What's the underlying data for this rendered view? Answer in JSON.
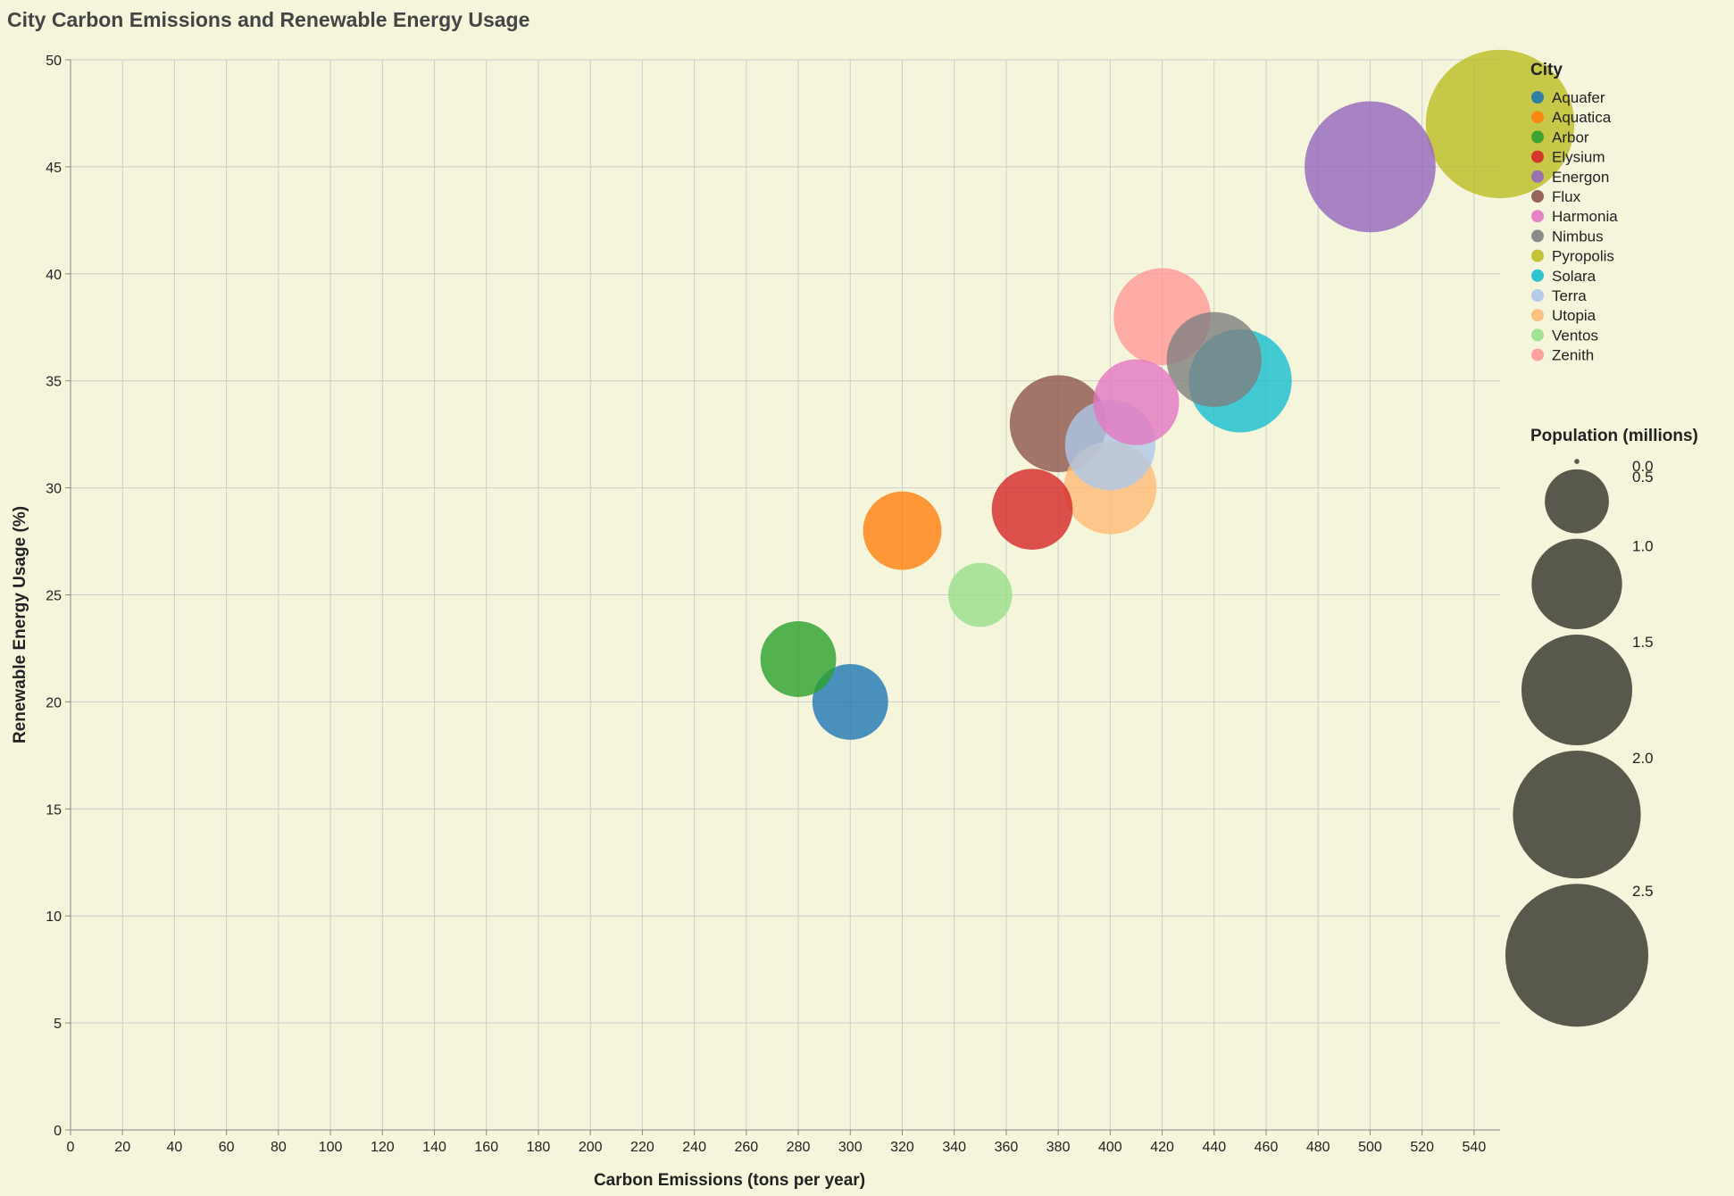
{
  "chart_data": {
    "type": "scatter",
    "title": "City Carbon Emissions and Renewable Energy Usage",
    "xlabel": "Carbon Emissions (tons per year)",
    "ylabel": "Renewable Energy Usage (%)",
    "xlim": [
      0,
      550
    ],
    "ylim": [
      0,
      50
    ],
    "x_ticks": [
      "0",
      "20",
      "40",
      "60",
      "80",
      "100",
      "120",
      "140",
      "160",
      "180",
      "200",
      "220",
      "240",
      "260",
      "280",
      "300",
      "320",
      "340",
      "360",
      "380",
      "400",
      "420",
      "440",
      "460",
      "480",
      "500",
      "520",
      "540"
    ],
    "y_ticks": [
      "0",
      "5",
      "10",
      "15",
      "20",
      "25",
      "30",
      "35",
      "40",
      "45",
      "50"
    ],
    "grid": true,
    "legend_placement": "right",
    "color_legend_title": "City",
    "size_legend_title": "Population (millions)",
    "size_legend": [
      "0.0",
      "0.5",
      "1.0",
      "1.5",
      "2.0",
      "2.5"
    ],
    "points": [
      {
        "city": "Aquafer",
        "x": 300,
        "y": 20,
        "population": 0.7,
        "color": "#1f77b4"
      },
      {
        "city": "Aquatica",
        "x": 320,
        "y": 28,
        "population": 0.75,
        "color": "#ff7f0e"
      },
      {
        "city": "Arbor",
        "x": 280,
        "y": 22,
        "population": 0.7,
        "color": "#2ca02c"
      },
      {
        "city": "Elysium",
        "x": 370,
        "y": 29,
        "population": 0.8,
        "color": "#d62728"
      },
      {
        "city": "Energon",
        "x": 500,
        "y": 45,
        "population": 2.1,
        "color": "#9467bd"
      },
      {
        "city": "Flux",
        "x": 380,
        "y": 33,
        "population": 1.15,
        "color": "#8c564b"
      },
      {
        "city": "Harmonia",
        "x": 410,
        "y": 34,
        "population": 0.9,
        "color": "#e377c2"
      },
      {
        "city": "Nimbus",
        "x": 440,
        "y": 36,
        "population": 1.1,
        "color": "#7f7f7f"
      },
      {
        "city": "Pyropolis",
        "x": 550,
        "y": 47,
        "population": 2.7,
        "color": "#bcbd22"
      },
      {
        "city": "Solara",
        "x": 450,
        "y": 35,
        "population": 1.3,
        "color": "#17becf"
      },
      {
        "city": "Terra",
        "x": 400,
        "y": 32,
        "population": 1.0,
        "color": "#aec7e8"
      },
      {
        "city": "Utopia",
        "x": 400,
        "y": 30,
        "population": 1.05,
        "color": "#ffbb78"
      },
      {
        "city": "Ventos",
        "x": 350,
        "y": 25,
        "population": 0.5,
        "color": "#98df8a"
      },
      {
        "city": "Zenith",
        "x": 420,
        "y": 38,
        "population": 1.15,
        "color": "#ff9896"
      }
    ]
  }
}
